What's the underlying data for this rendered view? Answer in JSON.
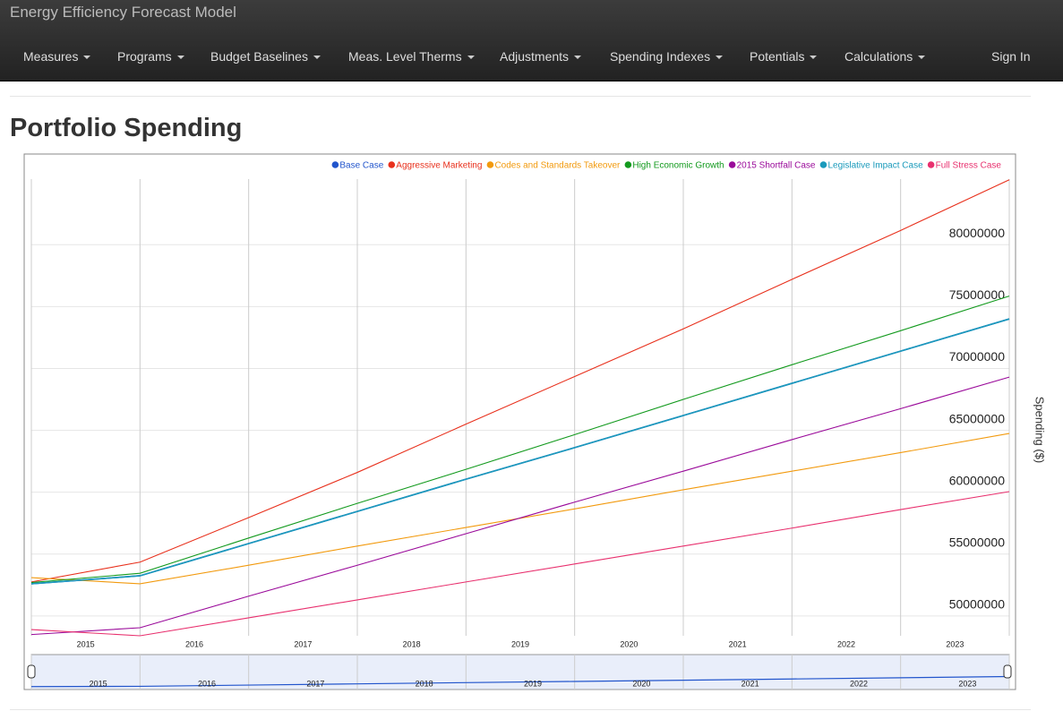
{
  "header": {
    "brand": "Energy Efficiency Forecast Model",
    "menu": [
      "Measures",
      "Programs",
      "Budget Baselines",
      "Meas. Level Therms",
      "Adjustments",
      "Spending Indexes",
      "Potentials",
      "Calculations"
    ],
    "sign_in": "Sign In"
  },
  "page": {
    "heading": "Portfolio Spending"
  },
  "chart_data": {
    "type": "line",
    "y_label": "Spending ($)",
    "x": [
      2014.5,
      2015.5,
      2016.5,
      2017.5,
      2018.5,
      2019.5,
      2020.5,
      2021.5,
      2022.5,
      2023.5
    ],
    "xlim": [
      2014.5,
      2023.5
    ],
    "xticks": [
      2015,
      2016,
      2017,
      2018,
      2019,
      2020,
      2021,
      2022,
      2023
    ],
    "ylim": [
      48400000,
      85300000
    ],
    "yticks": [
      50000000,
      55000000,
      60000000,
      65000000,
      70000000,
      75000000,
      80000000
    ],
    "grid": true,
    "legend": "top-right",
    "series": [
      {
        "name": "Base Case",
        "color": "#2255cc",
        "values": [
          52600000,
          53250000,
          55850000,
          58450000,
          61050000,
          63600000,
          66200000,
          68800000,
          71400000,
          74000000
        ]
      },
      {
        "name": "Aggressive Marketing",
        "color": "#e8301c",
        "values": [
          52750000,
          54350000,
          57950000,
          61600000,
          65500000,
          69350000,
          73200000,
          77200000,
          81150000,
          85250000
        ]
      },
      {
        "name": "Codes and Standards Takeover",
        "color": "#f29a0e",
        "values": [
          53100000,
          52600000,
          54100000,
          55650000,
          57150000,
          58650000,
          60200000,
          61700000,
          63200000,
          64750000
        ]
      },
      {
        "name": "High Economic Growth",
        "color": "#139a1e",
        "values": [
          52700000,
          53450000,
          56300000,
          59100000,
          61850000,
          64650000,
          67500000,
          70300000,
          73050000,
          75850000
        ]
      },
      {
        "name": "2015 Shortfall Case",
        "color": "#9a0a9a",
        "values": [
          48500000,
          49050000,
          51600000,
          54100000,
          56650000,
          59200000,
          61700000,
          64250000,
          66750000,
          69300000
        ]
      },
      {
        "name": "Legislative Impact Case",
        "color": "#1a9abb",
        "values": [
          52600000,
          53250000,
          55850000,
          58450000,
          61050000,
          63600000,
          66200000,
          68800000,
          71400000,
          74000000
        ]
      },
      {
        "name": "Full Stress Case",
        "color": "#e8306e",
        "values": [
          48900000,
          48400000,
          49850000,
          51300000,
          52750000,
          54200000,
          55650000,
          57100000,
          58600000,
          60050000
        ]
      }
    ]
  }
}
